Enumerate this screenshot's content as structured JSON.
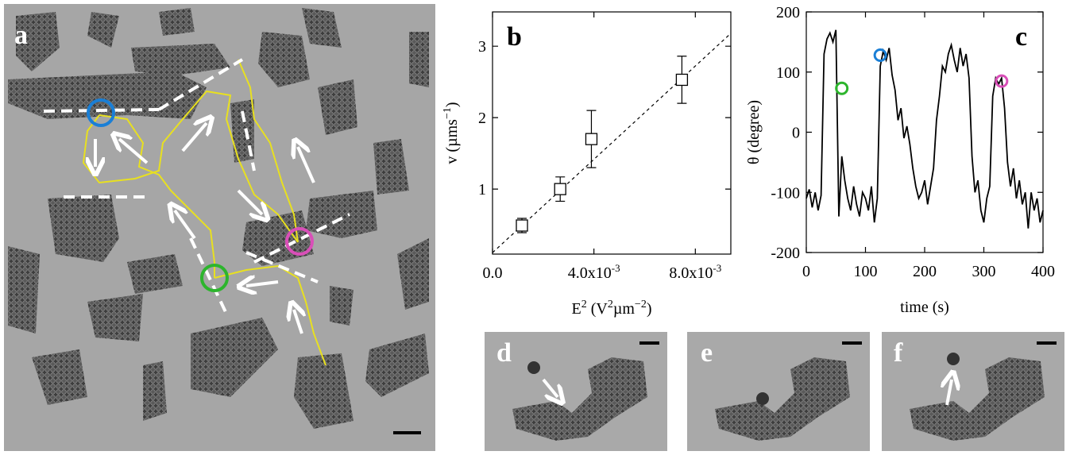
{
  "image_panels": [
    {
      "label": "a"
    },
    {
      "label": "d"
    },
    {
      "label": "e"
    },
    {
      "label": "f"
    }
  ],
  "chart_data": [
    {
      "type": "scatter",
      "title": "b",
      "x": [
        0.00116,
        0.00267,
        0.0039,
        0.00747
      ],
      "values": [
        0.49,
        1.0,
        1.7,
        2.53
      ],
      "errors": [
        0.1,
        0.17,
        0.4,
        0.33
      ],
      "fit_line": {
        "x": [
          0,
          0.0094
        ],
        "values": [
          0.11,
          3.18
        ]
      },
      "xlim": [
        0,
        0.0094
      ],
      "ylim": [
        0.09,
        3.48
      ],
      "xticks": [
        {
          "value": 0,
          "label": "0.0"
        },
        {
          "value": 0.004,
          "label": "4.0x10",
          "label_sup": "-3"
        },
        {
          "value": 0.008,
          "label": "8.0x10",
          "label_sup": "-3"
        }
      ],
      "yticks": [
        1,
        2,
        3
      ],
      "xlabel": [
        {
          "text": "E"
        },
        {
          "sup": "2"
        },
        {
          "text": " (V"
        },
        {
          "sup": "2"
        },
        {
          "text": "µm"
        },
        {
          "sup": "−2"
        },
        {
          "text": ")"
        }
      ],
      "ylabel": [
        {
          "text": "v (µms"
        },
        {
          "sup": "−1"
        },
        {
          "text": ")"
        }
      ],
      "color": "#000000"
    },
    {
      "type": "line",
      "title": "c",
      "x": [
        0,
        5,
        10,
        15,
        20,
        25,
        30,
        35,
        40,
        45,
        50,
        55,
        60,
        65,
        70,
        75,
        80,
        85,
        90,
        95,
        100,
        105,
        110,
        115,
        120,
        125,
        130,
        135,
        140,
        145,
        150,
        155,
        160,
        165,
        170,
        175,
        180,
        185,
        190,
        195,
        200,
        205,
        210,
        215,
        220,
        225,
        230,
        235,
        240,
        245,
        250,
        255,
        260,
        265,
        270,
        275,
        280,
        285,
        290,
        295,
        300,
        305,
        310,
        315,
        320,
        325,
        330,
        335,
        340,
        345,
        350,
        355,
        360,
        365,
        370,
        375,
        380,
        385,
        390,
        395,
        400
      ],
      "values": [
        -110,
        -95,
        -125,
        -100,
        -130,
        -105,
        130,
        155,
        165,
        150,
        170,
        -140,
        -40,
        -80,
        -110,
        -130,
        -90,
        -120,
        -140,
        -100,
        -110,
        -130,
        -90,
        -150,
        -110,
        110,
        135,
        120,
        140,
        95,
        70,
        20,
        40,
        -10,
        10,
        -20,
        -60,
        -90,
        -110,
        -100,
        -80,
        -120,
        -90,
        -60,
        20,
        60,
        110,
        100,
        130,
        145,
        120,
        100,
        140,
        110,
        130,
        90,
        -40,
        -100,
        -80,
        -130,
        -150,
        -110,
        -90,
        60,
        90,
        80,
        90,
        40,
        -50,
        -90,
        -60,
        -110,
        -80,
        -120,
        -100,
        -160,
        -100,
        -130,
        -110,
        -150,
        -130
      ],
      "markers": [
        {
          "x": 60,
          "y": 73,
          "color": "#2db52d"
        },
        {
          "x": 125,
          "y": 128,
          "color": "#1a7fd6"
        },
        {
          "x": 330,
          "y": 85,
          "color": "#d94fb8"
        }
      ],
      "xlim": [
        0,
        400
      ],
      "ylim": [
        -200,
        200
      ],
      "xticks": [
        0,
        100,
        200,
        300,
        400
      ],
      "yticks": [
        -200,
        -100,
        0,
        100,
        200
      ],
      "xlabel": [
        {
          "text": "time (s)"
        }
      ],
      "ylabel": [
        {
          "text": "θ (degree)"
        }
      ],
      "color": "#000000"
    }
  ]
}
